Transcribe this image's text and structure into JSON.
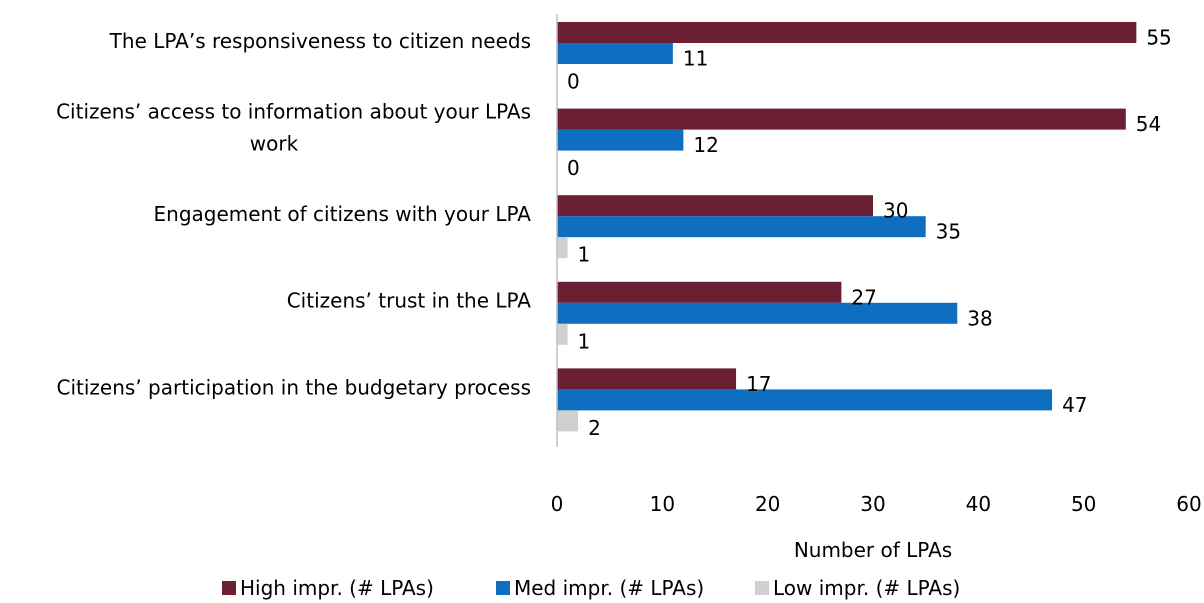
{
  "chart_data": {
    "type": "bar",
    "orientation": "horizontal",
    "categories": [
      "The LPA’s responsiveness to citizen needs",
      "Citizens’ access to information about your LPAs work",
      "Engagement of citizens with your LPA",
      "Citizens’ trust in the LPA",
      "Citizens’ participation in the budgetary process"
    ],
    "category_lines": [
      [
        "The LPA’s responsiveness to citizen needs"
      ],
      [
        "Citizens’ access to information about your LPAs",
        "work"
      ],
      [
        "Engagement of citizens with your LPA"
      ],
      [
        "Citizens’ trust in the LPA"
      ],
      [
        "Citizens’ participation in the budgetary process"
      ]
    ],
    "series": [
      {
        "name": "High impr. (# LPAs)",
        "color": "#6b1f33",
        "values": [
          55,
          54,
          30,
          27,
          17
        ]
      },
      {
        "name": "Med impr. (# LPAs)",
        "color": "#0e6ec0",
        "values": [
          11,
          12,
          35,
          38,
          47
        ]
      },
      {
        "name": "Low impr. (# LPAs)",
        "color": "#d0d0d0",
        "values": [
          0,
          0,
          1,
          1,
          2
        ]
      }
    ],
    "xlabel": "Number of LPAs",
    "ylabel": "",
    "xlim": [
      0,
      60
    ],
    "xticks": [
      0,
      10,
      20,
      30,
      40,
      50,
      60
    ],
    "grid": false,
    "legend_position": "bottom"
  }
}
